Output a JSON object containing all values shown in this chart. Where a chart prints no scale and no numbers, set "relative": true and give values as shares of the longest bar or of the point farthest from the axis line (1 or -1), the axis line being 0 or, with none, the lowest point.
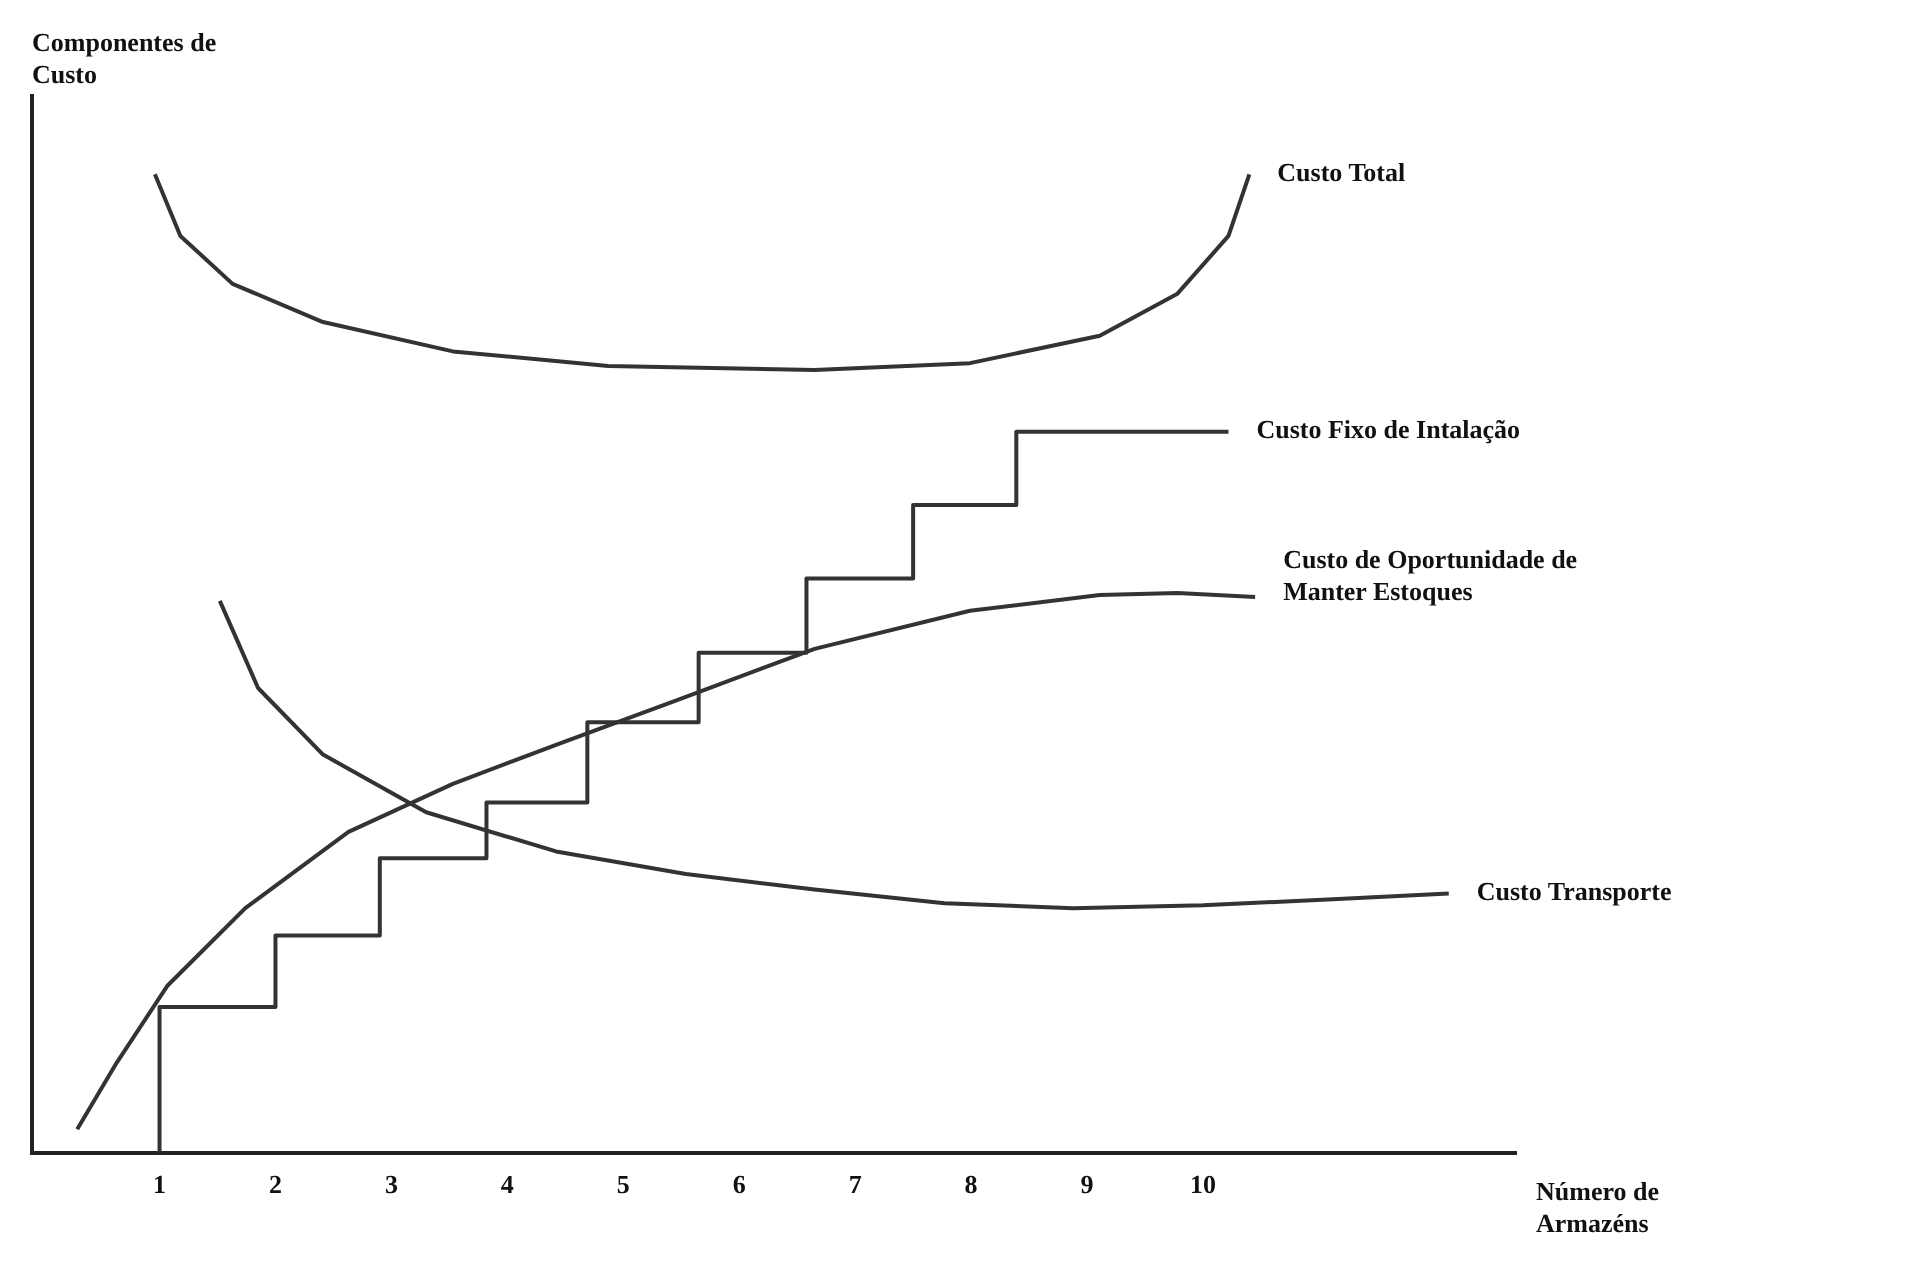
{
  "chart_data": {
    "type": "line",
    "relative": true,
    "xlabel": "Número de Armazéns",
    "ylabel": "Componentes de Custo",
    "xlim": [
      -0.1,
      12.7
    ],
    "xticks": [
      1,
      2,
      3,
      4,
      5,
      6,
      7,
      8,
      9,
      10
    ],
    "grid": false,
    "legend": false,
    "marker": "none",
    "line_style": "solid",
    "series": [
      {
        "name": "Custo Total",
        "color": "#333333",
        "x": [
          0.96,
          1.18,
          1.63,
          2.41,
          3.53,
          4.87,
          6.65,
          7.99,
          9.11,
          9.78,
          10.22,
          10.4
        ],
        "values": [
          1.0,
          0.937,
          0.888,
          0.849,
          0.819,
          0.804,
          0.8,
          0.807,
          0.835,
          0.878,
          0.937,
          1.0
        ]
      },
      {
        "name": "Custo Fixo de Intalação",
        "type": "step",
        "color": "#333333",
        "x": [
          1,
          1,
          2,
          2.9,
          3.82,
          4.69,
          5.65,
          6.58,
          7.5,
          8.39,
          9.29,
          10.22
        ],
        "values": [
          0,
          0.073,
          0.149,
          0.222,
          0.301,
          0.358,
          0.44,
          0.511,
          0.587,
          0.662,
          0.737,
          0.737
        ]
      },
      {
        "name": "Custo de Oportunidade de Manter Estoques",
        "color": "#333333",
        "x": [
          0.29,
          0.63,
          1.07,
          1.74,
          2.63,
          3.53,
          4.42,
          5.54,
          6.65,
          7.99,
          9.11,
          9.78,
          10.45
        ],
        "values": [
          0.024,
          0.092,
          0.171,
          0.25,
          0.328,
          0.377,
          0.417,
          0.466,
          0.515,
          0.554,
          0.57,
          0.572,
          0.568
        ]
      },
      {
        "name": "Custo Transporte",
        "color": "#333333",
        "x": [
          1.52,
          1.85,
          2.41,
          3.3,
          4.42,
          5.54,
          6.65,
          7.77,
          8.88,
          10.0,
          11.12,
          12.12
        ],
        "values": [
          0.564,
          0.475,
          0.407,
          0.348,
          0.308,
          0.285,
          0.269,
          0.255,
          0.25,
          0.253,
          0.259,
          0.265
        ]
      }
    ]
  }
}
